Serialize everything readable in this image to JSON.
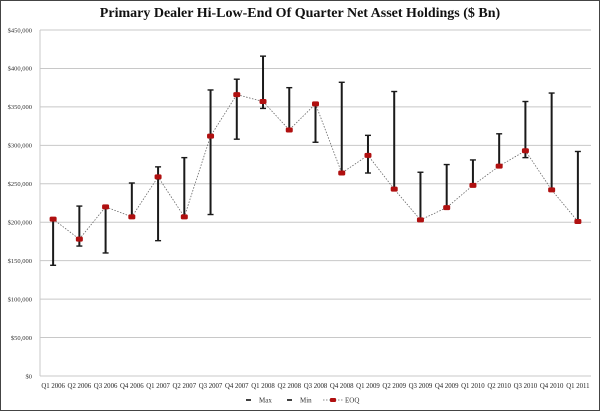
{
  "chart_data": {
    "type": "line",
    "title": "Primary Dealer Hi-Low-End Of Quarter Net Asset Holdings ($ Bn)",
    "xlabel": "",
    "ylabel": "",
    "ylim": [
      0,
      450000
    ],
    "y_tick_step": 50000,
    "y_ticks": [
      "$0",
      "$50,000",
      "$100,000",
      "$150,000",
      "$200,000",
      "$250,000",
      "$300,000",
      "$350,000",
      "$400,000",
      "$450,000"
    ],
    "grid": true,
    "legend_position": "bottom",
    "categories": [
      "Q1 2006",
      "Q2 2006",
      "Q3 2006",
      "Q4 2006",
      "Q1 2007",
      "Q2 2007",
      "Q3 2007",
      "Q4 2007",
      "Q1 2008",
      "Q2 2008",
      "Q3 2008",
      "Q4 2008",
      "Q1 2009",
      "Q2 2009",
      "Q3 2009",
      "Q4 2009",
      "Q1 2010",
      "Q2 2010",
      "Q3 2010",
      "Q4 2010",
      "Q1 2011"
    ],
    "series": [
      {
        "name": "Max",
        "style": "cap",
        "color": "#111111",
        "values": [
          204000,
          221000,
          220000,
          251000,
          272000,
          284000,
          372000,
          386000,
          416000,
          375000,
          354000,
          382000,
          313000,
          370000,
          265000,
          275000,
          281000,
          315000,
          357000,
          368000,
          292000
        ]
      },
      {
        "name": "Min",
        "style": "cap",
        "color": "#111111",
        "values": [
          144000,
          169000,
          160000,
          207000,
          176000,
          207000,
          210000,
          308000,
          348000,
          320000,
          304000,
          264000,
          264000,
          243000,
          203000,
          219000,
          248000,
          273000,
          284000,
          242000,
          201000
        ]
      },
      {
        "name": "EOQ",
        "style": "dotted-line-with-markers",
        "color": "#b01010",
        "values": [
          204000,
          178000,
          220000,
          207000,
          259000,
          207000,
          312000,
          366000,
          357000,
          320000,
          354000,
          264000,
          287000,
          243000,
          203000,
          219000,
          248000,
          273000,
          293000,
          242000,
          201000
        ]
      }
    ]
  }
}
